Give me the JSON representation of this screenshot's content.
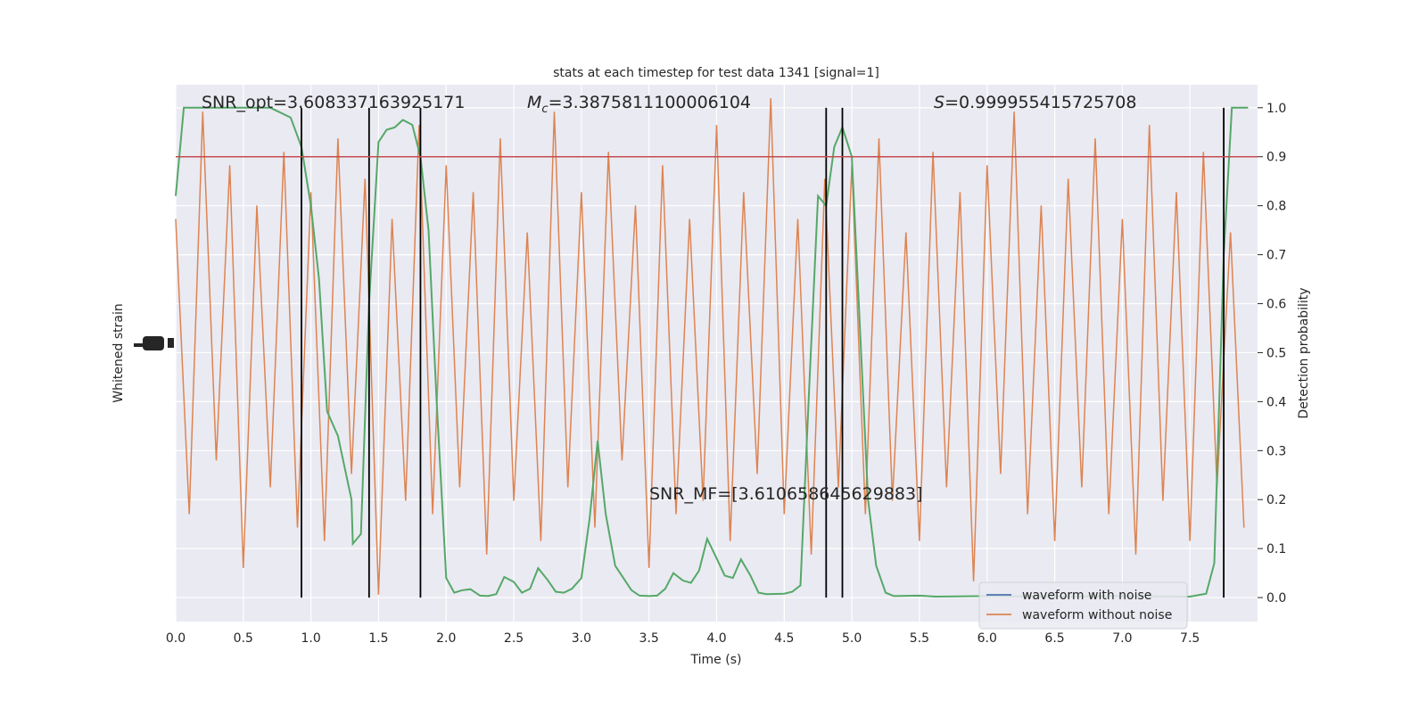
{
  "chart_data": {
    "type": "line",
    "title": "stats at each timestep for test data 1341 [signal=1]",
    "x_label": "Time (s)",
    "y_label": "Whitened strain",
    "y2_label": "Detection probability",
    "xlim": [
      0,
      8
    ],
    "xticks": [
      {
        "value": 0,
        "label": "0.0"
      },
      {
        "value": 0.5,
        "label": "0.5"
      },
      {
        "value": 1,
        "label": "1.0"
      },
      {
        "value": 1.5,
        "label": "1.5"
      },
      {
        "value": 2,
        "label": "2.0"
      },
      {
        "value": 2.5,
        "label": "2.5"
      },
      {
        "value": 3,
        "label": "3.0"
      },
      {
        "value": 3.5,
        "label": "3.5"
      },
      {
        "value": 4,
        "label": "4.0"
      },
      {
        "value": 4.5,
        "label": "4.5"
      },
      {
        "value": 5,
        "label": "5.0"
      },
      {
        "value": 5.5,
        "label": "5.5"
      },
      {
        "value": 6,
        "label": "6.0"
      },
      {
        "value": 6.5,
        "label": "6.5"
      },
      {
        "value": 7,
        "label": "7.0"
      },
      {
        "value": 7.5,
        "label": "7.5"
      }
    ],
    "ylim": [
      -1,
      1
    ],
    "y2lim": [
      -0.049,
      1.047
    ],
    "y2ticks": [
      {
        "value": 0,
        "label": "0.0"
      },
      {
        "value": 0.1,
        "label": "0.1"
      },
      {
        "value": 0.2,
        "label": "0.2"
      },
      {
        "value": 0.3,
        "label": "0.3"
      },
      {
        "value": 0.4,
        "label": "0.4"
      },
      {
        "value": 0.5,
        "label": "0.5"
      },
      {
        "value": 0.6,
        "label": "0.6"
      },
      {
        "value": 0.7,
        "label": "0.7"
      },
      {
        "value": 0.8,
        "label": "0.8"
      },
      {
        "value": 0.9,
        "label": "0.9"
      },
      {
        "value": 1,
        "label": "1.0"
      }
    ],
    "grid": true,
    "legend": "lower right",
    "series": [
      {
        "name": "waveform with noise",
        "color": "#4c72b0",
        "x": [
          0,
          0.1,
          0.2,
          0.3,
          0.4,
          0.5,
          0.6,
          0.7,
          0.8,
          0.9,
          1,
          1.1,
          1.2,
          1.3,
          1.4,
          1.5,
          1.6,
          1.7,
          1.8,
          1.9,
          2,
          2.1,
          2.2,
          2.3,
          2.4,
          2.5,
          2.6,
          2.7,
          2.8,
          2.9,
          3,
          3.1,
          3.2,
          3.3,
          3.4,
          3.5,
          3.6,
          3.7,
          3.8,
          3.9,
          4,
          4.1,
          4.2,
          4.3,
          4.4,
          4.5,
          4.6,
          4.7,
          4.8,
          4.9,
          5,
          5.1,
          5.2,
          5.3,
          5.4,
          5.5,
          5.6,
          5.7,
          5.8,
          5.9,
          6,
          6.1,
          6.2,
          6.3,
          6.4,
          6.5,
          6.6,
          6.7,
          6.8,
          6.9,
          7,
          7.1,
          7.2,
          7.3,
          7.4,
          7.5,
          7.6,
          7.7,
          7.8,
          7.9
        ],
        "values": [
          null,
          null,
          null,
          null,
          null,
          null,
          null,
          null,
          null,
          null,
          null,
          null,
          null,
          null,
          null,
          null,
          null,
          null,
          null,
          null,
          null,
          null,
          null,
          null,
          null,
          null,
          null,
          null,
          null,
          null,
          null,
          null,
          null,
          null,
          null,
          null,
          null,
          null,
          null,
          null,
          null,
          null,
          null,
          null,
          null,
          null,
          null,
          null,
          null,
          null,
          null,
          null,
          null,
          null,
          null,
          null,
          null,
          null,
          null,
          null,
          null,
          null,
          null,
          null,
          null,
          null,
          null,
          null,
          null,
          null,
          null,
          null,
          null,
          null,
          null,
          null,
          null,
          null,
          null,
          null
        ]
      },
      {
        "name": "waveform without noise",
        "color": "#dd8452",
        "x": [
          0,
          0.1,
          0.2,
          0.3,
          0.4,
          0.5,
          0.6,
          0.7,
          0.8,
          0.9,
          1,
          1.1,
          1.2,
          1.3,
          1.4,
          1.5,
          1.6,
          1.7,
          1.8,
          1.9,
          2,
          2.1,
          2.2,
          2.3,
          2.4,
          2.5,
          2.6,
          2.7,
          2.8,
          2.9,
          3,
          3.1,
          3.2,
          3.3,
          3.4,
          3.5,
          3.6,
          3.7,
          3.8,
          3.9,
          4,
          4.1,
          4.2,
          4.3,
          4.4,
          4.5,
          4.6,
          4.7,
          4.8,
          4.9,
          5,
          5.1,
          5.2,
          5.3,
          5.4,
          5.5,
          5.6,
          5.7,
          5.8,
          5.9,
          6,
          6.1,
          6.2,
          6.3,
          6.4,
          6.5,
          6.6,
          6.7,
          6.8,
          6.9,
          7,
          7.1,
          7.2,
          7.3,
          7.4,
          7.5,
          7.6,
          7.7,
          7.8,
          7.9
        ],
        "values": [
          0.5,
          -0.6,
          0.9,
          -0.4,
          0.7,
          -0.8,
          0.55,
          -0.5,
          0.75,
          -0.65,
          0.6,
          -0.7,
          0.8,
          -0.45,
          0.65,
          -0.9,
          0.5,
          -0.55,
          0.85,
          -0.6,
          0.7,
          -0.5,
          0.6,
          -0.75,
          0.8,
          -0.55,
          0.45,
          -0.7,
          0.9,
          -0.5,
          0.6,
          -0.65,
          0.75,
          -0.4,
          0.55,
          -0.8,
          0.7,
          -0.6,
          0.5,
          -0.55,
          0.85,
          -0.7,
          0.6,
          -0.45,
          0.95,
          -0.6,
          0.5,
          -0.75,
          0.65,
          -0.5,
          0.7,
          -0.6,
          0.8,
          -0.55,
          0.45,
          -0.7,
          0.75,
          -0.5,
          0.6,
          -0.85,
          0.7,
          -0.45,
          0.9,
          -0.6,
          0.55,
          -0.7,
          0.65,
          -0.5,
          0.8,
          -0.6,
          0.5,
          -0.75,
          0.85,
          -0.55,
          0.6,
          -0.7,
          0.75,
          -0.5,
          0.45,
          -0.65
        ]
      },
      {
        "color": "#55a868",
        "axis": "y2",
        "x": [
          0,
          0.06,
          0.2,
          0.5,
          0.7,
          0.85,
          0.93,
          1,
          1.06,
          1.12,
          1.2,
          1.3,
          1.31,
          1.37,
          1.43,
          1.5,
          1.56,
          1.62,
          1.68,
          1.75,
          1.81,
          1.87,
          1.93,
          2,
          2.06,
          2.12,
          2.18,
          2.25,
          2.31,
          2.37,
          2.43,
          2.5,
          2.56,
          2.62,
          2.68,
          2.75,
          2.81,
          2.87,
          2.93,
          3,
          3.06,
          3.12,
          3.18,
          3.25,
          3.31,
          3.37,
          3.43,
          3.5,
          3.56,
          3.62,
          3.68,
          3.75,
          3.81,
          3.87,
          3.93,
          4,
          4.06,
          4.12,
          4.18,
          4.25,
          4.31,
          4.37,
          4.5,
          4.56,
          4.62,
          4.68,
          4.75,
          4.81,
          4.87,
          4.93,
          5,
          5.06,
          5.12,
          5.18,
          5.25,
          5.31,
          5.5,
          5.62,
          6,
          6.5,
          7,
          7.5,
          7.62,
          7.68,
          7.75,
          7.81,
          7.93
        ],
        "values": [
          0.82,
          1,
          1,
          1,
          1,
          0.98,
          0.92,
          0.8,
          0.65,
          0.38,
          0.33,
          0.2,
          0.11,
          0.13,
          0.6,
          0.93,
          0.955,
          0.96,
          0.975,
          0.965,
          0.9,
          0.75,
          0.4,
          0.04,
          0.01,
          0.015,
          0.017,
          0.004,
          0.003,
          0.007,
          0.042,
          0.032,
          0.01,
          0.018,
          0.06,
          0.036,
          0.012,
          0.01,
          0.018,
          0.04,
          0.16,
          0.32,
          0.17,
          0.065,
          0.04,
          0.015,
          0.004,
          0.003,
          0.004,
          0.018,
          0.05,
          0.035,
          0.03,
          0.055,
          0.12,
          0.08,
          0.045,
          0.04,
          0.078,
          0.045,
          0.01,
          0.007,
          0.008,
          0.012,
          0.025,
          0.4,
          0.82,
          0.8,
          0.92,
          0.96,
          0.9,
          0.55,
          0.2,
          0.065,
          0.01,
          0.003,
          0.004,
          0.002,
          0.003,
          0.002,
          0.003,
          0.002,
          0.008,
          0.07,
          0.7,
          1,
          1
        ]
      }
    ],
    "vlines": {
      "color": "#000000",
      "x": [
        0.93,
        1.43,
        1.81,
        4.81,
        4.93,
        7.75
      ]
    },
    "hline": {
      "color": "#c44e52",
      "axis": "y2",
      "y": 0.9
    },
    "annotations": {
      "snr_opt": "SNR_opt=3.608337163925171",
      "mc": {
        "symbol": "M",
        "subscript": "c",
        "text": "=3.3875811100006104"
      },
      "s": {
        "symbol": "S",
        "text": "=0.999955415725708"
      },
      "snr_mf": "SNR_MF=[3.610658645629883]"
    }
  }
}
